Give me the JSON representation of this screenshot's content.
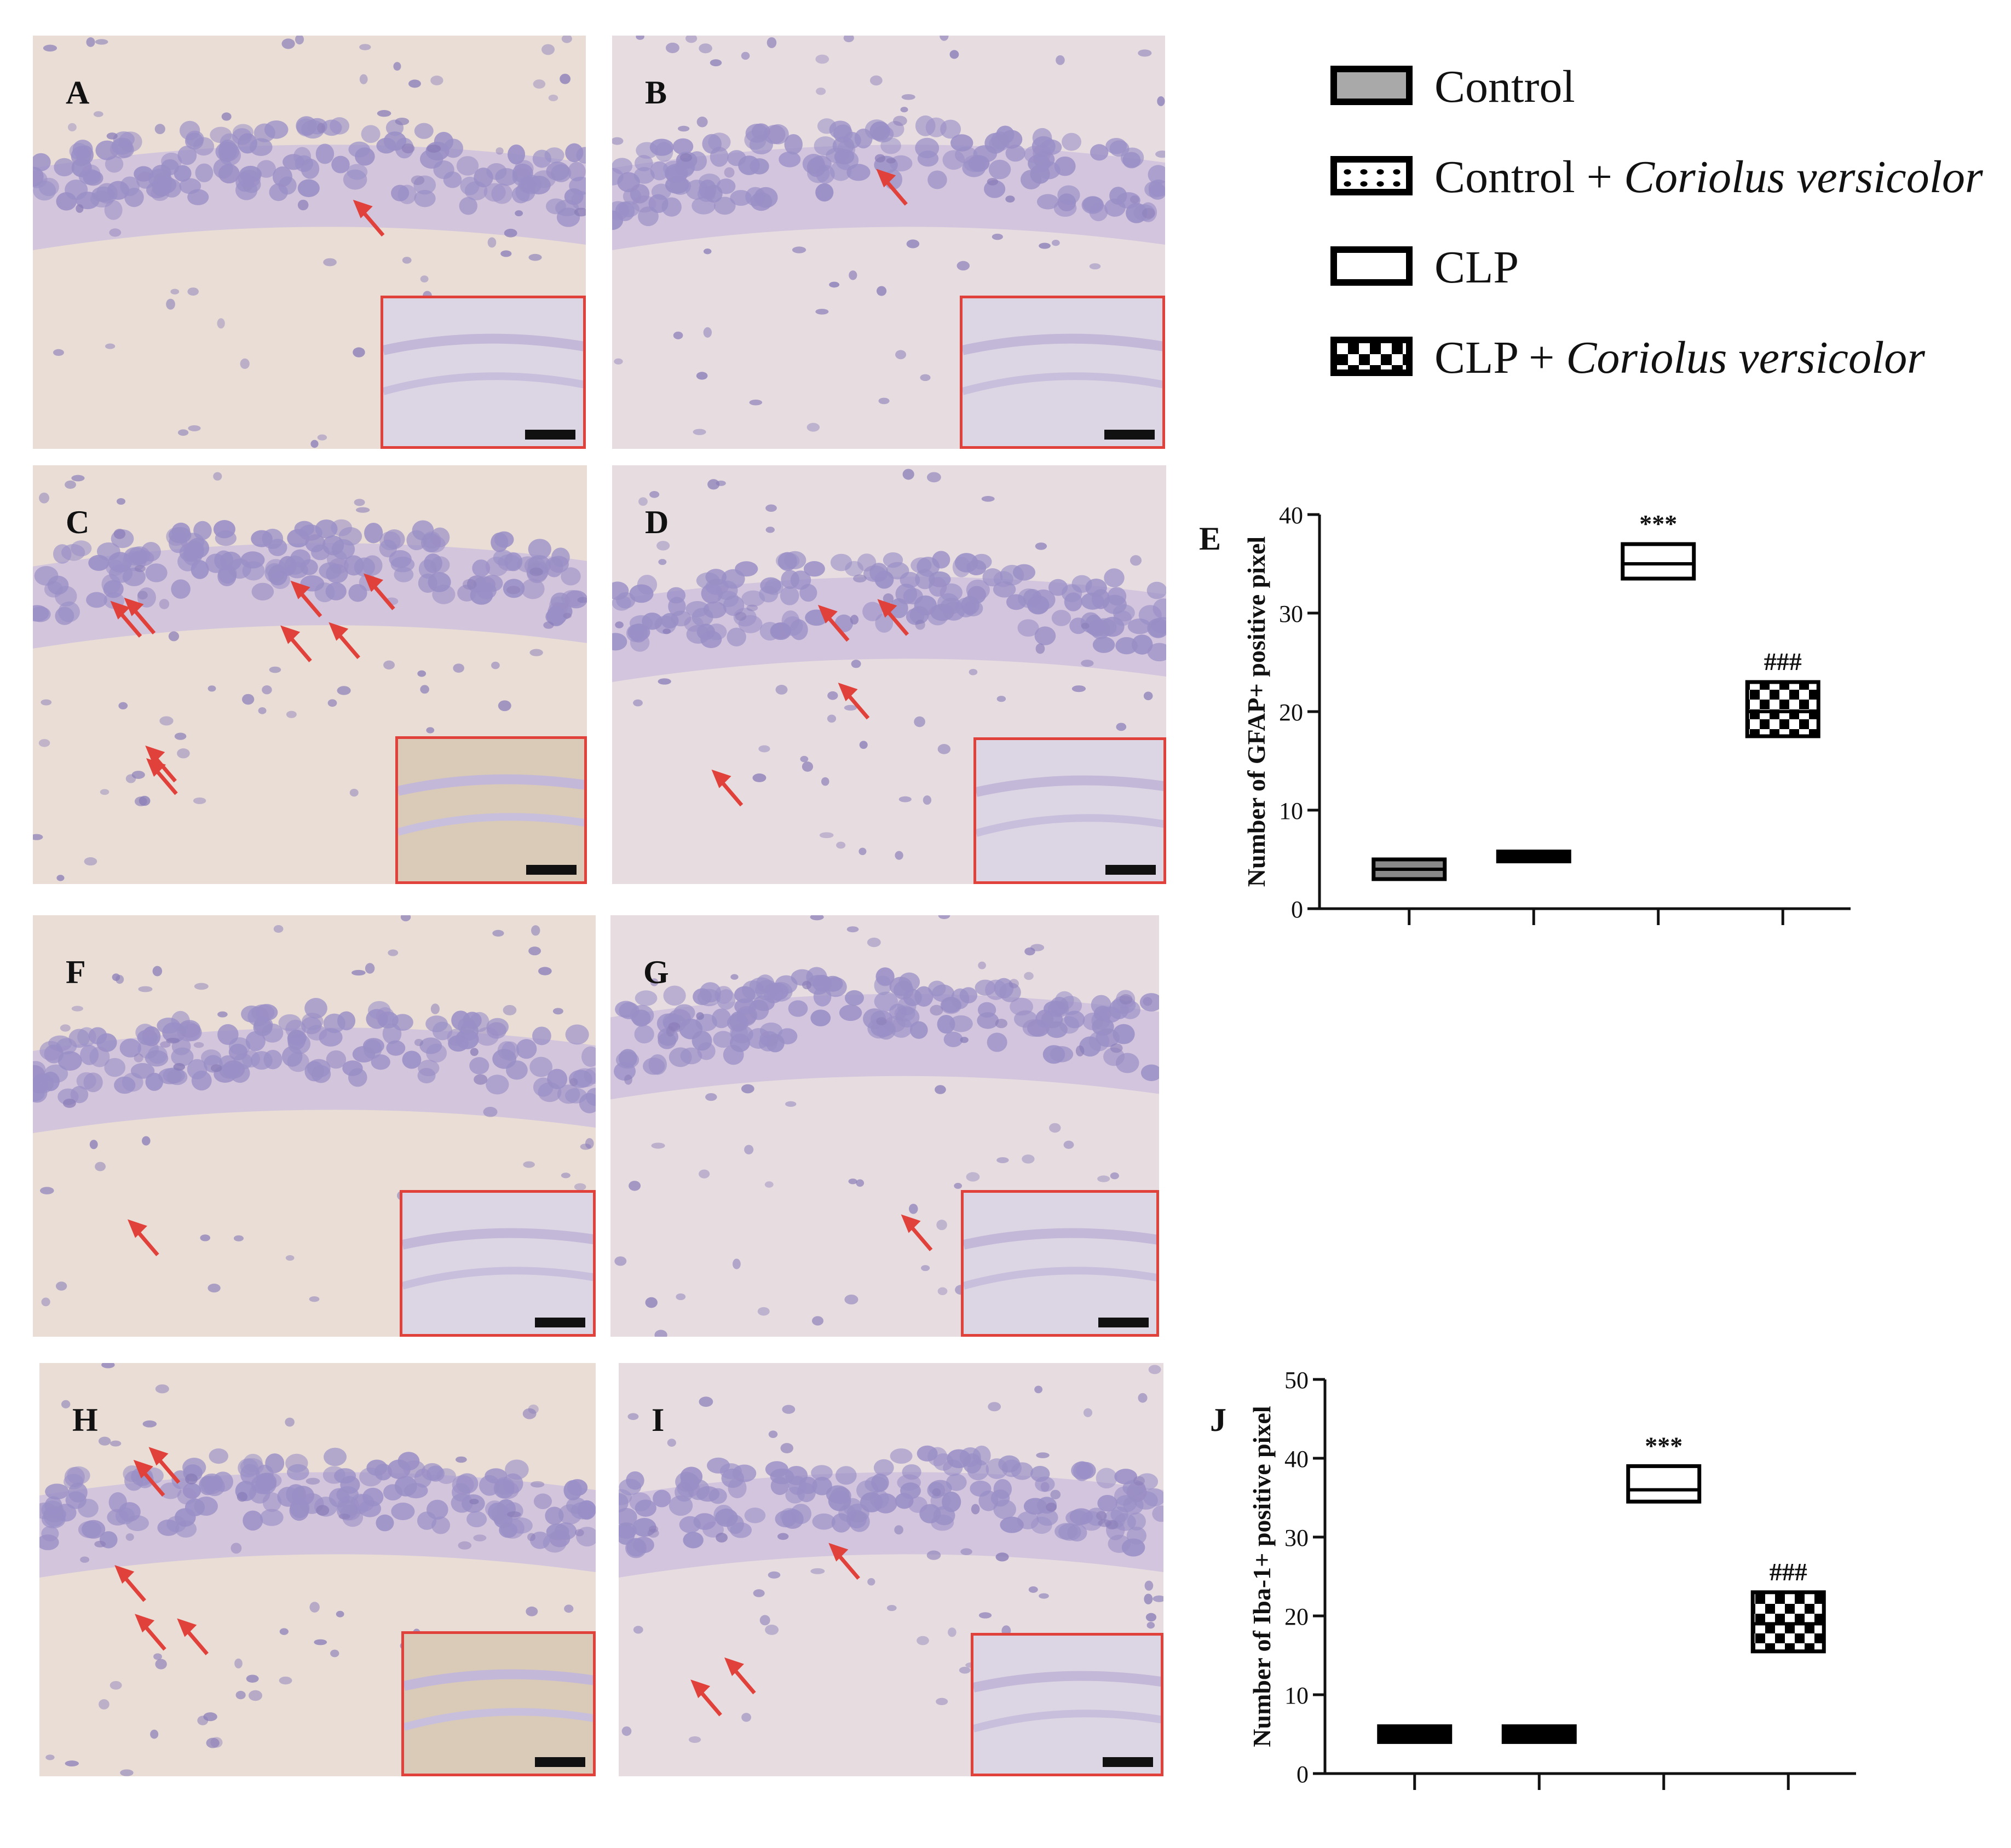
{
  "panels": [
    {
      "id": "A",
      "arrows": 1
    },
    {
      "id": "B",
      "arrows": 1
    },
    {
      "id": "C",
      "arrows": 8
    },
    {
      "id": "D",
      "arrows": 4
    },
    {
      "id": "F",
      "arrows": 1
    },
    {
      "id": "G",
      "arrows": 1
    },
    {
      "id": "H",
      "arrows": 5
    },
    {
      "id": "I",
      "arrows": 3
    }
  ],
  "colors": {
    "arrow": "#e0413a",
    "inset_border": "#e0413a",
    "tissue_bg": "#e9ddd6",
    "nuclei": "#9a8fc6"
  },
  "legend": [
    {
      "label": "Control",
      "italic": "",
      "pattern": "gray"
    },
    {
      "label": "Control + ",
      "italic": "Coriolus versicolor",
      "pattern": "dotted"
    },
    {
      "label": "CLP",
      "italic": "",
      "pattern": "open"
    },
    {
      "label": "CLP + ",
      "italic": "Coriolus versicolor",
      "pattern": "checker"
    }
  ],
  "chart_data": [
    {
      "panel": "E",
      "type": "box",
      "ylabel": "Number of GFAP+ positive pixel",
      "ylim": [
        0,
        40
      ],
      "yticks": [
        "0",
        "10",
        "20",
        "30",
        "40"
      ],
      "boxes": [
        {
          "group": "Control",
          "min": 3,
          "median": 4,
          "max": 5,
          "annotation": ""
        },
        {
          "group": "Control + Coriolus versicolor",
          "min": 4.8,
          "median": 5.3,
          "max": 5.8,
          "annotation": ""
        },
        {
          "group": "CLP",
          "min": 33.5,
          "median": 35,
          "max": 37,
          "annotation": "***"
        },
        {
          "group": "CLP + Coriolus versicolor",
          "min": 17.5,
          "median": 20,
          "max": 23,
          "annotation": "###"
        }
      ]
    },
    {
      "panel": "J",
      "type": "box",
      "ylabel": "Number of Iba-1+ positive pixel",
      "ylim": [
        0,
        50
      ],
      "yticks": [
        "0",
        "10",
        "20",
        "30",
        "40",
        "50"
      ],
      "boxes": [
        {
          "group": "Control",
          "min": 4,
          "median": 5,
          "max": 6,
          "annotation": ""
        },
        {
          "group": "Control + Coriolus versicolor",
          "min": 4,
          "median": 5,
          "max": 6,
          "annotation": ""
        },
        {
          "group": "CLP",
          "min": 34.5,
          "median": 36,
          "max": 39,
          "annotation": "***"
        },
        {
          "group": "CLP + Coriolus versicolor",
          "min": 15.5,
          "median": 19,
          "max": 23,
          "annotation": "###"
        }
      ]
    }
  ]
}
